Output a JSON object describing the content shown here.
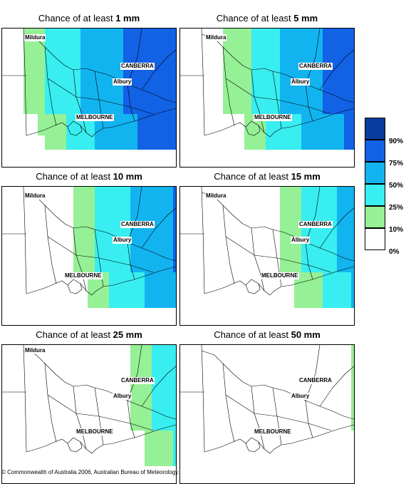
{
  "map_title_prefix": "Chance of at least",
  "panels": [
    {
      "amount": "1 mm",
      "coverage": 1.0
    },
    {
      "amount": "5 mm",
      "coverage": 0.86
    },
    {
      "amount": "10 mm",
      "coverage": 0.72
    },
    {
      "amount": "15 mm",
      "coverage": 0.55
    },
    {
      "amount": "25 mm",
      "coverage": 0.38
    },
    {
      "amount": "50 mm",
      "coverage": 0.16
    }
  ],
  "cities": {
    "mildura": "Mildura",
    "canberra": "CANBERRA",
    "albury": "Albury",
    "melbourne": "MELBOURNE"
  },
  "legend": {
    "labels": [
      "90%",
      "75%",
      "50%",
      "25%",
      "10%",
      "0%"
    ],
    "colors": [
      "#0a3c9e",
      "#1262e6",
      "#12b4f0",
      "#38eef0",
      "#96f096",
      "#ffffff"
    ]
  },
  "copyright": "© Commonwealth of Australia 2006, Australian Bureau of Meteorology"
}
